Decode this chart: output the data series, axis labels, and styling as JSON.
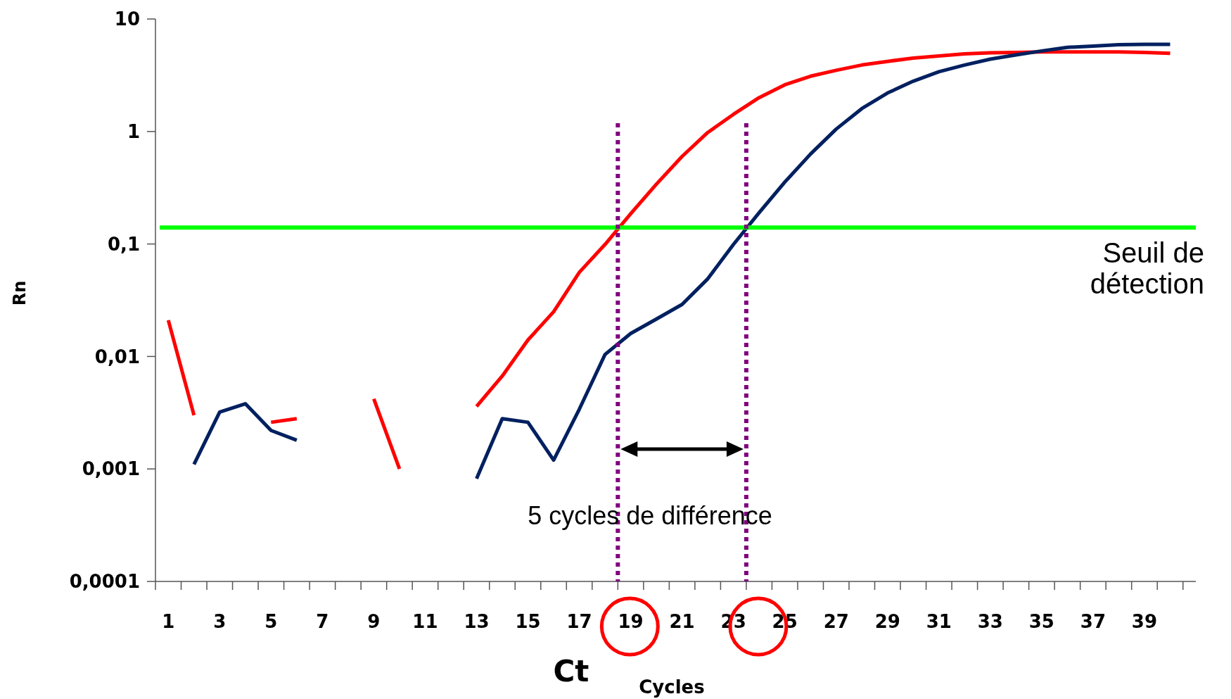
{
  "chart_data": {
    "type": "line",
    "xlabel": "Cycles",
    "ylabel": "Rn",
    "log": "y",
    "x": [
      1,
      2,
      3,
      4,
      5,
      6,
      7,
      8,
      9,
      10,
      11,
      12,
      13,
      14,
      15,
      16,
      17,
      18,
      19,
      20,
      21,
      22,
      23,
      24,
      25,
      26,
      27,
      28,
      29,
      30,
      31,
      32,
      33,
      34,
      35,
      36,
      37,
      38,
      39,
      40
    ],
    "xlim": [
      0.5,
      41
    ],
    "xticks": [
      {
        "value": 0.5,
        "label": null
      },
      1,
      {
        "value": 1.5,
        "label": null
      },
      {
        "value": 2.5,
        "label": null
      },
      3,
      {
        "value": 3.5,
        "label": null
      },
      {
        "value": 4.5,
        "label": null
      },
      5,
      {
        "value": 5.5,
        "label": null
      },
      {
        "value": 6.5,
        "label": null
      },
      7,
      {
        "value": 7.5,
        "label": null
      },
      {
        "value": 8.5,
        "label": null
      },
      9,
      {
        "value": 9.5,
        "label": null
      },
      {
        "value": 10.5,
        "label": null
      },
      11,
      {
        "value": 11.5,
        "label": null
      },
      {
        "value": 12.5,
        "label": null
      },
      13,
      {
        "value": 13.5,
        "label": null
      },
      {
        "value": 14.5,
        "label": null
      },
      15,
      {
        "value": 15.5,
        "label": null
      },
      {
        "value": 16.5,
        "label": null
      },
      17,
      {
        "value": 17.5,
        "label": null
      },
      {
        "value": 18.5,
        "label": null
      },
      19,
      {
        "value": 19.5,
        "label": null
      },
      {
        "value": 20.5,
        "label": null
      },
      21,
      {
        "value": 21.5,
        "label": null
      },
      {
        "value": 22.5,
        "label": null
      },
      23,
      {
        "value": 23.5,
        "label": null
      },
      {
        "value": 24.5,
        "label": null
      },
      25,
      {
        "value": 25.5,
        "label": null
      },
      {
        "value": 26.5,
        "label": null
      },
      27,
      {
        "value": 27.5,
        "label": null
      },
      {
        "value": 28.5,
        "label": null
      },
      29,
      {
        "value": 29.5,
        "label": null
      },
      {
        "value": 30.5,
        "label": null
      },
      31,
      {
        "value": 31.5,
        "label": null
      },
      {
        "value": 32.5,
        "label": null
      },
      33,
      {
        "value": 33.5,
        "label": null
      },
      {
        "value": 34.5,
        "label": null
      },
      35,
      {
        "value": 35.5,
        "label": null
      },
      {
        "value": 36.5,
        "label": null
      },
      37,
      {
        "value": 37.5,
        "label": null
      },
      {
        "value": 38.5,
        "label": null
      },
      39,
      {
        "value": 39.5,
        "label": null
      },
      {
        "value": 40.5,
        "label": null
      }
    ],
    "ylim": [
      0.0001,
      10
    ],
    "yticks": [
      {
        "value": 0.0001,
        "label": "0,0001"
      },
      {
        "value": 0.001,
        "label": "0,001"
      },
      {
        "value": 0.01,
        "label": "0,01"
      },
      {
        "value": 0.1,
        "label": "0,1"
      },
      1,
      10
    ],
    "series": [
      {
        "color": "#ff0000",
        "values": [
          0.021,
          0.003,
          null,
          null,
          0.0026,
          0.0028,
          null,
          null,
          0.0042,
          0.001,
          null,
          null,
          0.0036,
          0.0067,
          0.014,
          0.025,
          0.056,
          0.099,
          0.186,
          0.34,
          0.6,
          0.98,
          1.42,
          2.0,
          2.6,
          3.1,
          3.5,
          3.9,
          4.2,
          4.5,
          4.7,
          4.9,
          5.0,
          5.05,
          5.1,
          5.1,
          5.1,
          5.1,
          5.05,
          4.95
        ]
      },
      {
        "color": "#002060",
        "values": [
          null,
          0.0011,
          0.0032,
          0.0038,
          0.0022,
          0.0018,
          null,
          null,
          null,
          null,
          null,
          null,
          0.00082,
          0.0028,
          0.0026,
          0.0012,
          0.0034,
          0.0104,
          0.016,
          0.0215,
          0.029,
          0.049,
          0.099,
          0.19,
          0.355,
          0.63,
          1.05,
          1.6,
          2.2,
          2.8,
          3.4,
          3.9,
          4.4,
          4.8,
          5.2,
          5.6,
          5.75,
          5.9,
          5.95,
          5.95
        ]
      }
    ],
    "ref_lines": [
      {
        "axis": "y",
        "value": 0.14,
        "label": "Seuil de détection",
        "color": "#00ff00",
        "line_style": "solid"
      },
      {
        "axis": "x",
        "value": 18.5,
        "color": "#800080",
        "line_style": "dotted"
      },
      {
        "axis": "x",
        "value": 23.5,
        "color": "#800080",
        "line_style": "dotted"
      }
    ],
    "annotations": [
      "5 cycles de différence",
      "Ct"
    ]
  }
}
